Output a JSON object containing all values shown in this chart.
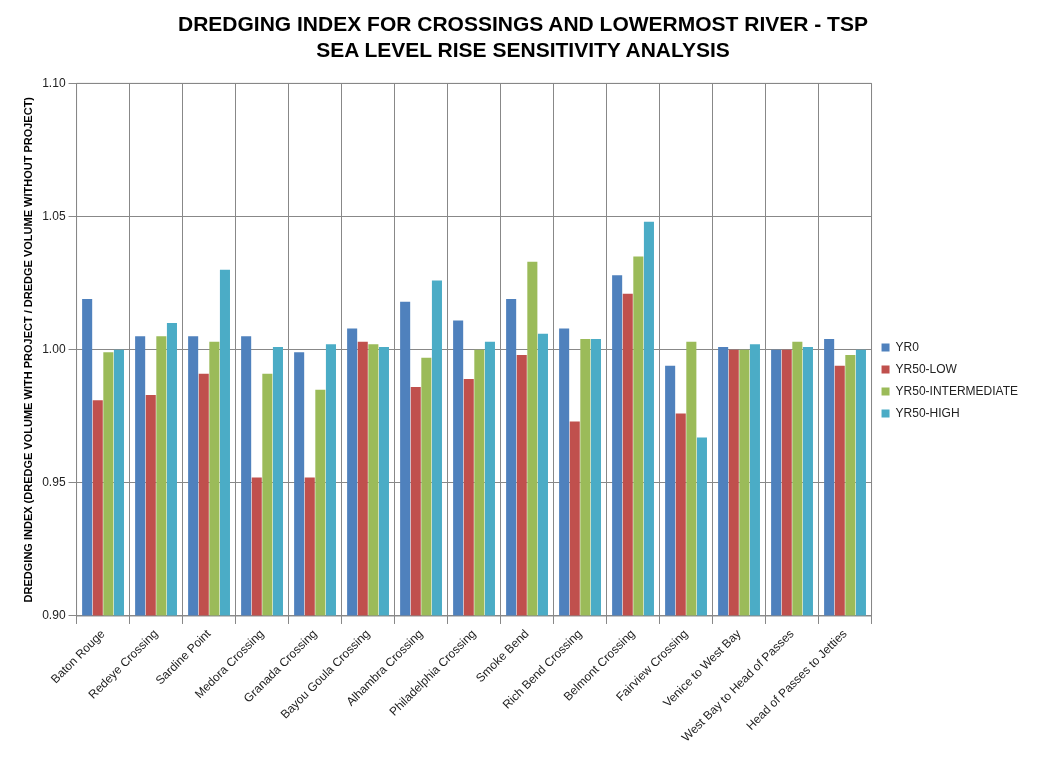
{
  "chart_data": {
    "type": "bar",
    "title": "DREDGING INDEX FOR CROSSINGS AND LOWERMOST RIVER - TSP",
    "subtitle": "SEA LEVEL RISE SENSITIVITY ANALYSIS",
    "ylabel": "DREDGING INDEX (DREDGE VOLUME WITH PROJECT / DREDGE VOLUME WITHOUT PROJECT)",
    "categories": [
      "Baton Rouge",
      "Redeye Crossing",
      "Sardine Point",
      "Medora Crossing",
      "Granada Crossing",
      "Bayou Goula Crossing",
      "Alhambra Crossing",
      "Philadelphia Crossing",
      "Smoke Bend",
      "Rich Bend Crossing",
      "Belmont Crossing",
      "Fairview Crossing",
      "Venice to West Bay",
      "West Bay to Head of Passes",
      "Head of Passes to Jetties"
    ],
    "series": [
      {
        "name": "YR0",
        "color": "#4f81bd",
        "values": [
          1.019,
          1.005,
          1.005,
          1.005,
          0.999,
          1.008,
          1.018,
          1.011,
          1.019,
          1.008,
          1.028,
          0.994,
          1.001,
          1.0,
          1.004
        ]
      },
      {
        "name": "YR50-LOW",
        "color": "#c0504d",
        "values": [
          0.981,
          0.983,
          0.991,
          0.952,
          0.952,
          1.003,
          0.986,
          0.989,
          0.998,
          0.973,
          1.021,
          0.976,
          1.0,
          1.0,
          0.994
        ]
      },
      {
        "name": "YR50-INTERMEDIATE",
        "color": "#9bbb59",
        "values": [
          0.999,
          1.005,
          1.003,
          0.991,
          0.985,
          1.002,
          0.997,
          1.0,
          1.033,
          1.004,
          1.035,
          1.003,
          1.0,
          1.003,
          0.998
        ]
      },
      {
        "name": "YR50-HIGH",
        "color": "#4bacc6",
        "values": [
          1.0,
          1.01,
          1.03,
          1.001,
          1.002,
          1.001,
          1.026,
          1.003,
          1.006,
          1.004,
          1.048,
          0.967,
          1.002,
          1.001,
          1.0
        ]
      }
    ],
    "ylim": [
      0.9,
      1.1
    ],
    "yticks": [
      {
        "value": 0.9,
        "label": "0.90"
      },
      {
        "value": 0.95,
        "label": "0.95"
      },
      {
        "value": 1.0,
        "label": "1.00"
      },
      {
        "value": 1.05,
        "label": "1.05"
      },
      {
        "value": 1.1,
        "label": "1.10"
      }
    ],
    "grid": true,
    "legend": "right"
  }
}
